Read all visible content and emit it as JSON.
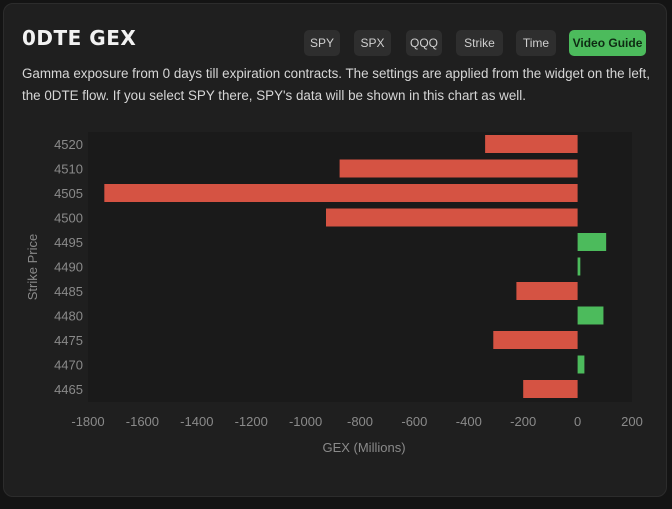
{
  "header": {
    "title": "0DTE GEX",
    "description": "Gamma exposure from 0 days till expiration contracts. The settings are applied from the widget on the left, the 0DTE flow. If you select SPY there, SPY's data will be shown in this chart as well."
  },
  "toolbar": {
    "buttons": [
      {
        "label": "SPY",
        "active": false
      },
      {
        "label": "SPX",
        "active": false
      },
      {
        "label": "QQQ",
        "active": false
      },
      {
        "label": "Strike",
        "active": false
      },
      {
        "label": "Time",
        "active": false
      },
      {
        "label": "Video Guide",
        "active": true
      }
    ]
  },
  "colors": {
    "negative": "#d55343",
    "positive": "#4cbb5c",
    "plot_bg": "#1a1a1a",
    "axis_text": "#8a8a8a"
  },
  "chart_data": {
    "type": "bar",
    "orientation": "horizontal",
    "categories": [
      "4520",
      "4510",
      "4505",
      "4500",
      "4495",
      "4490",
      "4485",
      "4480",
      "4475",
      "4470",
      "4465"
    ],
    "values": [
      -340,
      -875,
      -1740,
      -925,
      105,
      10,
      -225,
      95,
      -310,
      25,
      -200
    ],
    "xlabel": "GEX (Millions)",
    "ylabel": "Strike Price",
    "xlim": [
      -1800,
      200
    ],
    "xticks": [
      -1800,
      -1600,
      -1400,
      -1200,
      -1000,
      -800,
      -600,
      -400,
      -200,
      0,
      200
    ],
    "grid": false,
    "legend": "none"
  }
}
